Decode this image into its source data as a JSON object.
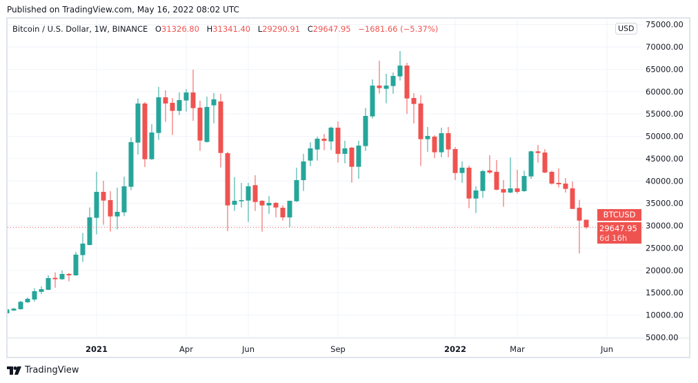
{
  "published": "Published on TradingView.com, May 16, 2022 08:02 UTC",
  "legend": {
    "symbol": "Bitcoin / U.S. Dollar, 1W, BINANCE",
    "o_label": "O",
    "o": "31326.80",
    "h_label": "H",
    "h": "31341.40",
    "l_label": "L",
    "l": "29290.91",
    "c_label": "C",
    "c": "29647.95",
    "change": "−1681.66 (−5.37%)"
  },
  "currency_badge": "USD",
  "last_price": {
    "symbol": "BTCUSD",
    "price": "29647.95",
    "countdown": "6d 16h"
  },
  "footer": {
    "brand": "TradingView",
    "logo_icon": "tradingview-logo-icon"
  },
  "colors": {
    "up": "#26a69a",
    "down": "#ef5350",
    "grid": "#f0f3fa",
    "border": "#e0e3eb"
  },
  "chart_data": {
    "type": "candlestick",
    "interval": "1W",
    "ylim": [
      5000,
      75000
    ],
    "y_ticks": [
      "75000.00",
      "70000.00",
      "65000.00",
      "60000.00",
      "55000.00",
      "50000.00",
      "45000.00",
      "40000.00",
      "35000.00",
      "30000.00",
      "25000.00",
      "20000.00",
      "15000.00",
      "10000.00",
      "5000.00"
    ],
    "x_ticks": [
      {
        "label": "2021",
        "date": "2021-01-04",
        "year": true
      },
      {
        "label": "Apr",
        "date": "2021-04-05",
        "year": false
      },
      {
        "label": "Jun",
        "date": "2021-06-07",
        "year": false
      },
      {
        "label": "Sep",
        "date": "2021-09-06",
        "year": false
      },
      {
        "label": "2022",
        "date": "2022-01-03",
        "year": true
      },
      {
        "label": "Mar",
        "date": "2022-03-07",
        "year": false
      },
      {
        "label": "Jun",
        "date": "2022-06-06",
        "year": false
      }
    ],
    "grid": true,
    "last_price_line": 29647.95,
    "candles_columns": [
      "date",
      "open",
      "high",
      "low",
      "close"
    ],
    "candles": [
      [
        "2020-10-05",
        10400,
        11300,
        10350,
        11270
      ],
      [
        "2020-10-12",
        11020,
        11630,
        10910,
        11430
      ],
      [
        "2020-10-19",
        11320,
        13180,
        11220,
        12970
      ],
      [
        "2020-10-26",
        12870,
        13950,
        12720,
        13640
      ],
      [
        "2020-11-02",
        13490,
        16010,
        13030,
        15340
      ],
      [
        "2020-11-09",
        15190,
        16420,
        14720,
        15800
      ],
      [
        "2020-11-16",
        15650,
        18890,
        15600,
        18270
      ],
      [
        "2020-11-23",
        18330,
        19560,
        16110,
        18020
      ],
      [
        "2020-11-30",
        18020,
        19970,
        17900,
        19200
      ],
      [
        "2020-12-07",
        19200,
        19410,
        17550,
        18890
      ],
      [
        "2020-12-14",
        18890,
        24140,
        18800,
        23520
      ],
      [
        "2020-12-21",
        23420,
        28360,
        21880,
        25990
      ],
      [
        "2020-12-28",
        25680,
        34070,
        25600,
        31860
      ],
      [
        "2021-01-04",
        31760,
        42050,
        28050,
        37570
      ],
      [
        "2021-01-11",
        37570,
        40050,
        30210,
        35620
      ],
      [
        "2021-01-18",
        35720,
        37730,
        28670,
        32070
      ],
      [
        "2021-01-25",
        32070,
        38500,
        29130,
        33100
      ],
      [
        "2021-02-01",
        32990,
        40970,
        32120,
        38810
      ],
      [
        "2021-02-08",
        38710,
        49770,
        37930,
        48690
      ],
      [
        "2021-02-15",
        48590,
        58470,
        45910,
        57340
      ],
      [
        "2021-02-22",
        57340,
        57650,
        43130,
        44880
      ],
      [
        "2021-03-01",
        44880,
        52700,
        44730,
        50850
      ],
      [
        "2021-03-08",
        50750,
        61040,
        49200,
        58730
      ],
      [
        "2021-03-15",
        58730,
        60270,
        53220,
        57340
      ],
      [
        "2021-03-22",
        57490,
        58520,
        50290,
        55690
      ],
      [
        "2021-03-29",
        55690,
        59810,
        54760,
        58110
      ],
      [
        "2021-04-05",
        58010,
        60580,
        55540,
        59810
      ],
      [
        "2021-04-12",
        59810,
        64900,
        53480,
        56310
      ],
      [
        "2021-04-19",
        56410,
        57960,
        46740,
        49050
      ],
      [
        "2021-04-26",
        48740,
        58880,
        48590,
        56570
      ],
      [
        "2021-05-03",
        56930,
        59650,
        52910,
        58280
      ],
      [
        "2021-05-10",
        57800,
        59500,
        43030,
        46270
      ],
      [
        "2021-05-17",
        46220,
        46530,
        28770,
        34540
      ],
      [
        "2021-05-24",
        34690,
        40870,
        33300,
        35570
      ],
      [
        "2021-05-31",
        35460,
        39580,
        34070,
        35720
      ],
      [
        "2021-06-07",
        35620,
        39580,
        30830,
        38810
      ],
      [
        "2021-06-14",
        39070,
        41280,
        33300,
        35310
      ],
      [
        "2021-06-21",
        35570,
        35720,
        28670,
        34540
      ],
      [
        "2021-06-28",
        34540,
        36650,
        32630,
        35100
      ],
      [
        "2021-07-05",
        35100,
        35300,
        31860,
        34070
      ],
      [
        "2021-07-12",
        34020,
        34590,
        31140,
        31860
      ],
      [
        "2021-07-19",
        31860,
        35600,
        29650,
        35570
      ],
      [
        "2021-07-26",
        35460,
        42980,
        35310,
        40200
      ],
      [
        "2021-08-02",
        40200,
        46070,
        37780,
        44370
      ],
      [
        "2021-08-09",
        44570,
        48690,
        43340,
        47300
      ],
      [
        "2021-08-16",
        47050,
        49930,
        44570,
        49460
      ],
      [
        "2021-08-23",
        49460,
        50540,
        46890,
        48990
      ],
      [
        "2021-08-30",
        48850,
        52190,
        46890,
        51930
      ],
      [
        "2021-09-06",
        51930,
        53320,
        44110,
        46070
      ],
      [
        "2021-09-13",
        46070,
        48990,
        43960,
        47300
      ],
      [
        "2021-09-20",
        47460,
        47610,
        39630,
        43180
      ],
      [
        "2021-09-27",
        43180,
        48990,
        40510,
        47920
      ],
      [
        "2021-10-04",
        47820,
        56360,
        46730,
        54560
      ],
      [
        "2021-10-11",
        54460,
        62740,
        53990,
        61350
      ],
      [
        "2021-10-18",
        61350,
        66910,
        59550,
        60790
      ],
      [
        "2021-10-25",
        60630,
        63980,
        57390,
        61350
      ],
      [
        "2021-11-01",
        61250,
        64290,
        59500,
        63510
      ],
      [
        "2021-11-08",
        63410,
        69070,
        62490,
        65830
      ],
      [
        "2021-11-15",
        65830,
        66450,
        55020,
        58470
      ],
      [
        "2021-11-22",
        58570,
        59650,
        52860,
        57240
      ],
      [
        "2021-11-29",
        57340,
        59190,
        43340,
        49360
      ],
      [
        "2021-12-06",
        49360,
        52090,
        46530,
        50080
      ],
      [
        "2021-12-13",
        49930,
        50230,
        45140,
        46430
      ],
      [
        "2021-12-20",
        46430,
        51930,
        45290,
        50700
      ],
      [
        "2021-12-27",
        50700,
        52090,
        45290,
        47050
      ],
      [
        "2022-01-03",
        47150,
        47610,
        40200,
        41790
      ],
      [
        "2022-01-10",
        41790,
        44370,
        39580,
        42980
      ],
      [
        "2022-01-17",
        42980,
        43440,
        33920,
        36080
      ],
      [
        "2022-01-24",
        36080,
        38810,
        32840,
        37880
      ],
      [
        "2022-01-31",
        37780,
        42510,
        36240,
        42210
      ],
      [
        "2022-02-07",
        42360,
        45760,
        41590,
        41900
      ],
      [
        "2022-02-14",
        42050,
        44680,
        37930,
        38040
      ],
      [
        "2022-02-21",
        38190,
        40200,
        34230,
        37420
      ],
      [
        "2022-02-28",
        37420,
        45290,
        37260,
        38350
      ],
      [
        "2022-03-07",
        38350,
        42510,
        37160,
        37570
      ],
      [
        "2022-03-14",
        37730,
        42330,
        37570,
        41120
      ],
      [
        "2022-03-21",
        41020,
        46790,
        40450,
        46630
      ],
      [
        "2022-03-28",
        46630,
        48070,
        44110,
        46270
      ],
      [
        "2022-04-04",
        46370,
        47140,
        41740,
        41900
      ],
      [
        "2022-04-11",
        42050,
        42310,
        39170,
        39420
      ],
      [
        "2022-04-18",
        39580,
        42820,
        38550,
        39270
      ],
      [
        "2022-04-25",
        39420,
        40660,
        37420,
        38240
      ],
      [
        "2022-05-02",
        38350,
        39890,
        33700,
        33760
      ],
      [
        "2022-05-09",
        34020,
        35770,
        23780,
        31140
      ],
      [
        "2022-05-16",
        31326.8,
        31341.4,
        29290.91,
        29647.95
      ]
    ]
  }
}
